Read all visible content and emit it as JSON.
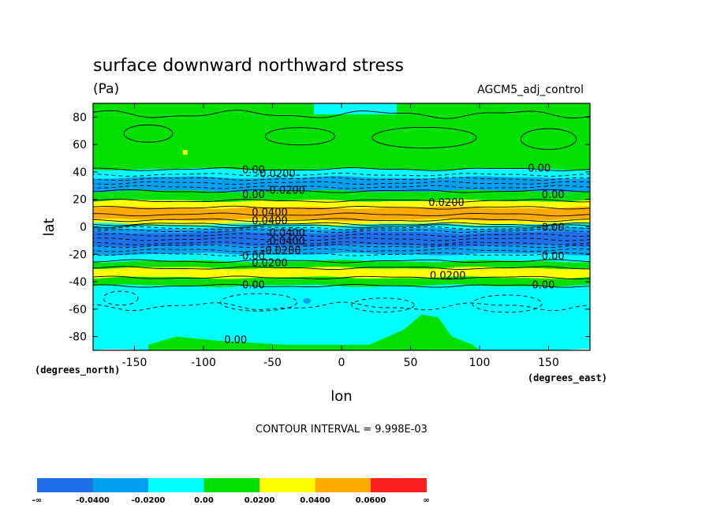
{
  "chart_data": {
    "type": "heatmap",
    "title": "surface downward northward stress",
    "units": "(Pa)",
    "dataset": "AGCM5_adj_control",
    "xlabel": "lon",
    "ylabel": "lat",
    "x_units": "(degrees_east)",
    "y_units": "(degrees_north)",
    "xlim": [
      -180,
      180
    ],
    "ylim": [
      -90,
      90
    ],
    "x_ticks": [
      "-150",
      "-100",
      "-50",
      "0",
      "50",
      "100",
      "150"
    ],
    "x_tick_values": [
      -150,
      -100,
      -50,
      0,
      50,
      100,
      150
    ],
    "y_ticks": [
      "80",
      "60",
      "40",
      "20",
      "0",
      "-20",
      "-40",
      "-60",
      "-80"
    ],
    "y_tick_values": [
      80,
      60,
      40,
      20,
      0,
      -20,
      -40,
      -60,
      -80
    ],
    "contour_interval": "CONTOUR INTERVAL = 9.998E-03",
    "colorbar": {
      "labels": [
        "-∞",
        "-0.0400",
        "-0.0200",
        "0.00",
        "0.0200",
        "0.0400",
        "0.0600",
        "∞"
      ],
      "colors": [
        "#1e6fe8",
        "#00a0f0",
        "#00ffff",
        "#00e000",
        "#ffff00",
        "#ffaa00",
        "#ff2020"
      ]
    },
    "zonal_bands": [
      {
        "lat_from": 90,
        "lat_to": 82,
        "level": "0.00 to 0.0200",
        "color": "#00e000"
      },
      {
        "lat_from": 82,
        "lat_to": 42,
        "level": "0.00 to 0.0200",
        "color": "#00e000"
      },
      {
        "lat_from": 42,
        "lat_to": 26,
        "level": "-0.0200 to 0.00",
        "color": "#00ffff"
      },
      {
        "lat_from": 36,
        "lat_to": 26,
        "level": "-0.0400 to -0.0200",
        "color": "#00a0f0"
      },
      {
        "lat_from": 26,
        "lat_to": 19,
        "level": "0.00 to 0.0200",
        "color": "#00e000"
      },
      {
        "lat_from": 19,
        "lat_to": 14,
        "level": "0.0200 to 0.0400",
        "color": "#ffff00"
      },
      {
        "lat_from": 14,
        "lat_to": 5,
        "level": "0.0400 to 0.0600",
        "color": "#ffaa00"
      },
      {
        "lat_from": 5,
        "lat_to": 2,
        "level": "0.0200 to 0.0400",
        "color": "#ffff00"
      },
      {
        "lat_from": 2,
        "lat_to": -1,
        "level": "-0.0200 to 0.00",
        "color": "#00ffff"
      },
      {
        "lat_from": -1,
        "lat_to": -4,
        "level": "-0.0400 to -0.0200",
        "color": "#00a0f0"
      },
      {
        "lat_from": -4,
        "lat_to": -14,
        "level": "below -0.0400",
        "color": "#1e6fe8"
      },
      {
        "lat_from": -14,
        "lat_to": -20,
        "level": "-0.0400 to -0.0200",
        "color": "#00a0f0"
      },
      {
        "lat_from": -20,
        "lat_to": -25,
        "level": "-0.0200 to 0.00",
        "color": "#00ffff"
      },
      {
        "lat_from": -25,
        "lat_to": -30,
        "level": "0.00 to 0.0200",
        "color": "#00e000"
      },
      {
        "lat_from": -30,
        "lat_to": -37,
        "level": "0.0200 to 0.0400",
        "color": "#ffff00"
      },
      {
        "lat_from": -37,
        "lat_to": -43,
        "level": "0.00 to 0.0200",
        "color": "#00e000"
      },
      {
        "lat_from": -43,
        "lat_to": -90,
        "level": "-0.0200 to 0.00",
        "color": "#00ffff"
      }
    ],
    "contour_labels": [
      {
        "text": "0.00",
        "lon": -72,
        "lat": 42
      },
      {
        "text": "-0.0200",
        "lon": -62,
        "lat": 39
      },
      {
        "text": "-0.0200",
        "lon": -55,
        "lat": 27
      },
      {
        "text": "0.00",
        "lon": -72,
        "lat": 24
      },
      {
        "text": "0.0200",
        "lon": 63,
        "lat": 18
      },
      {
        "text": "0.00",
        "lon": 135,
        "lat": 43
      },
      {
        "text": "0.00",
        "lon": 145,
        "lat": 24
      },
      {
        "text": "0.0400",
        "lon": -65,
        "lat": 11
      },
      {
        "text": "0.0400",
        "lon": -65,
        "lat": 5
      },
      {
        "text": "0.00",
        "lon": 145,
        "lat": 0
      },
      {
        "text": "-0.0400",
        "lon": -55,
        "lat": -4
      },
      {
        "text": "-0.0400",
        "lon": -55,
        "lat": -10
      },
      {
        "text": "-0.0200",
        "lon": -58,
        "lat": -17
      },
      {
        "text": "0.00",
        "lon": -72,
        "lat": -21
      },
      {
        "text": "0.00",
        "lon": 145,
        "lat": -21
      },
      {
        "text": "0.0200",
        "lon": -65,
        "lat": -26
      },
      {
        "text": "0.0200",
        "lon": 64,
        "lat": -35
      },
      {
        "text": "0.00",
        "lon": -72,
        "lat": -42
      },
      {
        "text": "0.00",
        "lon": 138,
        "lat": -42
      },
      {
        "text": "0.00",
        "lon": -85,
        "lat": -82
      }
    ]
  }
}
